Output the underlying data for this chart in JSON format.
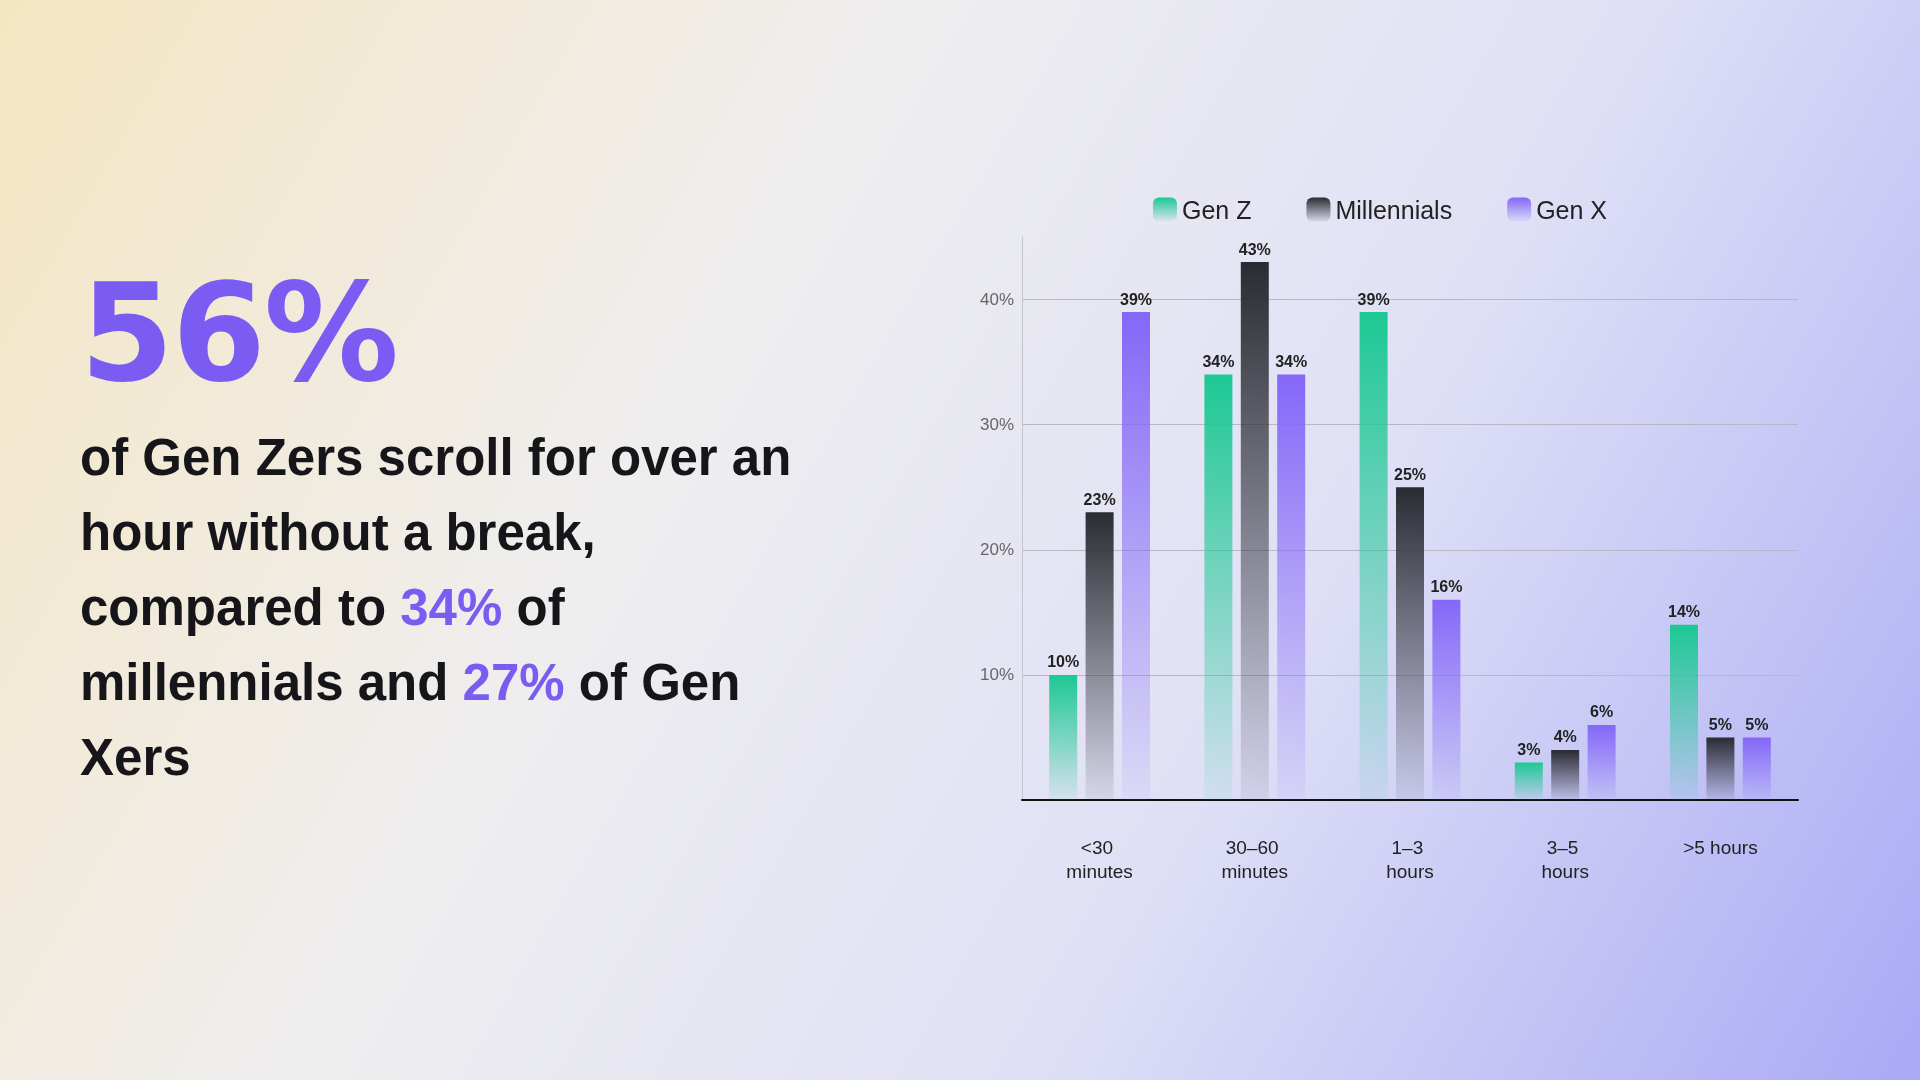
{
  "chart_data": {
    "type": "bar",
    "title": "56%",
    "subtitle": "of Gen Zers scroll for over an hour without a break, compared to 34% of millennials and 27% of Gen Xers",
    "categories": [
      "<30 minutes",
      "30–60 minutes",
      "1–3 hours",
      "3–5 hours",
      ">5 hours"
    ],
    "series": [
      {
        "name": "Gen Z",
        "color": "#1dc893",
        "values": [
          10,
          34,
          39,
          3,
          14
        ],
        "value_labels": [
          "10%",
          "34%",
          "39%",
          "3%",
          "14%"
        ]
      },
      {
        "name": "Millennials",
        "color": "#2b2b33",
        "values": [
          23,
          43,
          25,
          4,
          5
        ],
        "value_labels": [
          "23%",
          "43%",
          "25%",
          "4%",
          "5%"
        ]
      },
      {
        "name": "Gen X",
        "color": "#8467f8",
        "values": [
          39,
          34,
          16,
          6,
          5
        ],
        "value_labels": [
          "39%",
          "34%",
          "16%",
          "6%",
          "5%"
        ]
      }
    ],
    "ylim": [
      0,
      45
    ],
    "yticks": [
      {
        "value": 10,
        "label": "10%"
      },
      {
        "value": 20,
        "label": "20%"
      },
      {
        "value": 30,
        "label": "30%"
      },
      {
        "value": 40,
        "label": "40%"
      }
    ],
    "grid": "y",
    "legend": "top"
  }
}
